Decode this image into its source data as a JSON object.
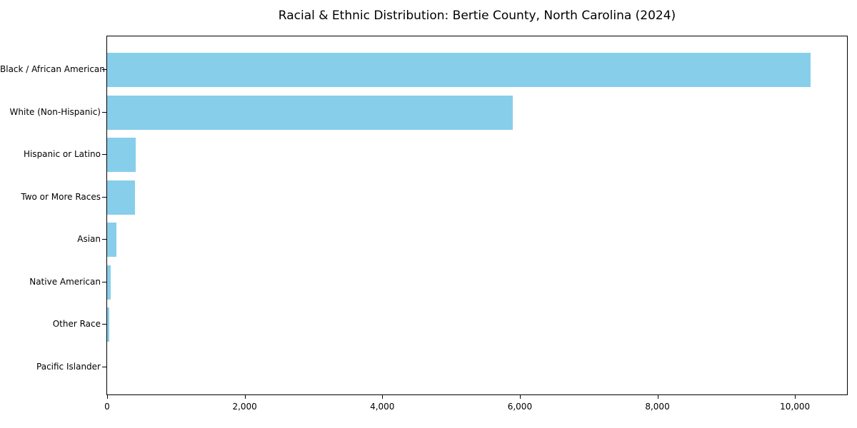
{
  "chart_data": {
    "type": "bar",
    "orientation": "horizontal",
    "title": "Racial & Ethnic Distribution: Bertie County, North Carolina (2024)",
    "xlabel": "",
    "ylabel": "",
    "categories": [
      "Black / African American",
      "White (Non-Hispanic)",
      "Hispanic or Latino",
      "Two or More Races",
      "Asian",
      "Native American",
      "Other Race",
      "Pacific Islander"
    ],
    "values": [
      10230,
      5900,
      415,
      400,
      130,
      50,
      30,
      0
    ],
    "xlim": [
      0,
      10756
    ],
    "x_ticks": [
      0,
      2000,
      4000,
      6000,
      8000,
      10000
    ],
    "x_tick_labels": [
      "0",
      "2,000",
      "4,000",
      "6,000",
      "8,000",
      "10,000"
    ],
    "bar_color": "#87CEEB",
    "axis_color": "#000000",
    "grid": false,
    "legend": false
  }
}
